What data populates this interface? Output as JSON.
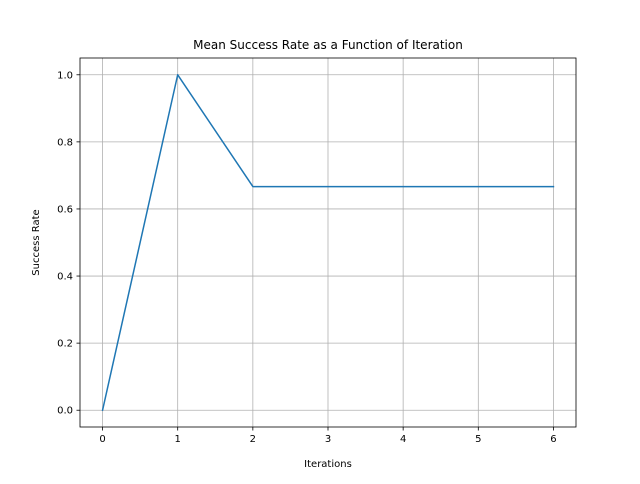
{
  "chart_data": {
    "type": "line",
    "title": "Mean Success Rate as a Function of Iteration",
    "xlabel": "Iterations",
    "ylabel": "Success Rate",
    "x": [
      0,
      1,
      2,
      3,
      4,
      5,
      6
    ],
    "series": [
      {
        "values": [
          0.0,
          1.0,
          0.6667,
          0.6667,
          0.6667,
          0.6667,
          0.6667
        ],
        "color": "#1f77b4"
      }
    ],
    "xticks": [
      "0",
      "1",
      "2",
      "3",
      "4",
      "5",
      "6"
    ],
    "yticks": [
      "0.0",
      "0.2",
      "0.4",
      "0.6",
      "0.8",
      "1.0"
    ],
    "xlim": [
      -0.3,
      6.3
    ],
    "ylim": [
      -0.05,
      1.05
    ],
    "grid": true,
    "legend": false
  }
}
